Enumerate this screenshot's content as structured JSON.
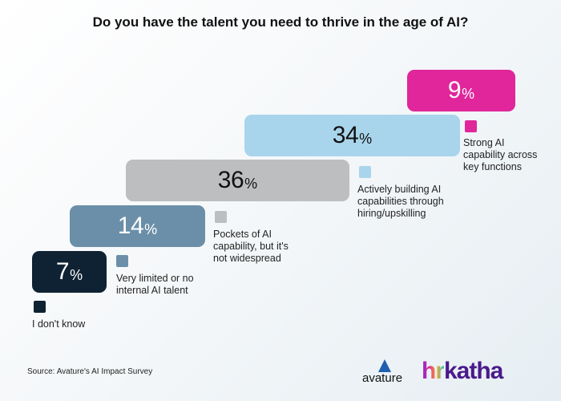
{
  "title": "Do you have the talent you need to thrive in the age of AI?",
  "chart_data": {
    "type": "bar",
    "title": "Do you have the talent you need to thrive in the age of AI?",
    "categories": [
      "I don't know",
      "Very limited or no internal AI talent",
      "Pockets of AI capability, but it's not widespread",
      "Actively building AI capabilities through hiring/upskilling",
      "Strong AI capability across key functions"
    ],
    "values": [
      7,
      14,
      36,
      34,
      9
    ],
    "unit": "%",
    "colors": [
      "#0f2233",
      "#6b8fa8",
      "#bdbec0",
      "#a9d5ec",
      "#e0269a"
    ],
    "legend_labels": [
      "I don't know",
      "Very limited or no\ninternal AI talent",
      "Pockets of AI\ncapability, but it's\nnot widespread",
      "Actively building AI\ncapabilities through\nhiring/upskilling",
      "Strong AI\ncapability across\nkey functions"
    ]
  },
  "source": "Source: Avature's AI Impact Survey",
  "logos": {
    "avature": "avature",
    "hrkatha_hr": "hr",
    "hrkatha_rest": "katha"
  }
}
